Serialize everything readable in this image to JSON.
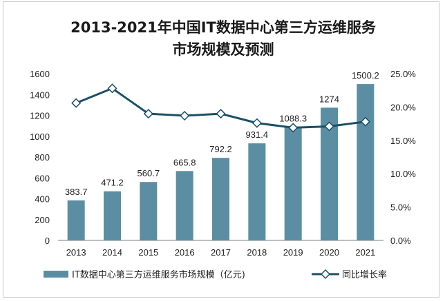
{
  "chart_data": {
    "type": "bar",
    "title_line1": "2013-2021年中国IT数据中心第三方运维服务",
    "title_line2": "市场规模及预测",
    "categories": [
      "2013",
      "2014",
      "2015",
      "2016",
      "2017",
      "2018",
      "2019",
      "2020",
      "2021"
    ],
    "series": [
      {
        "name": "IT数据中心第三方运维服务市场规模（亿元)",
        "type": "bar",
        "axis": "left",
        "color": "#5b8ea3",
        "values": [
          383.7,
          471.2,
          560.7,
          665.8,
          792.2,
          931.4,
          1088.3,
          1274,
          1500.2
        ],
        "labels": [
          "383.7",
          "471.2",
          "560.7",
          "665.8",
          "792.2",
          "931.4",
          "1088.3",
          "1274",
          "1500.2"
        ]
      },
      {
        "name": "同比增长率",
        "type": "line",
        "axis": "right",
        "color": "#1b4f66",
        "values": [
          20.6,
          22.8,
          19.0,
          18.7,
          19.0,
          17.6,
          16.9,
          17.1,
          17.8
        ]
      }
    ],
    "y_left": {
      "min": 0,
      "max": 1600,
      "ticks": [
        "0",
        "200",
        "400",
        "600",
        "800",
        "1000",
        "1200",
        "1400",
        "1600"
      ]
    },
    "y_right": {
      "min": 0,
      "max": 25,
      "ticks": [
        "0.0%",
        "5.0%",
        "10.0%",
        "15.0%",
        "20.0%",
        "25.0%"
      ]
    },
    "grid": false,
    "legend_position": "bottom"
  }
}
